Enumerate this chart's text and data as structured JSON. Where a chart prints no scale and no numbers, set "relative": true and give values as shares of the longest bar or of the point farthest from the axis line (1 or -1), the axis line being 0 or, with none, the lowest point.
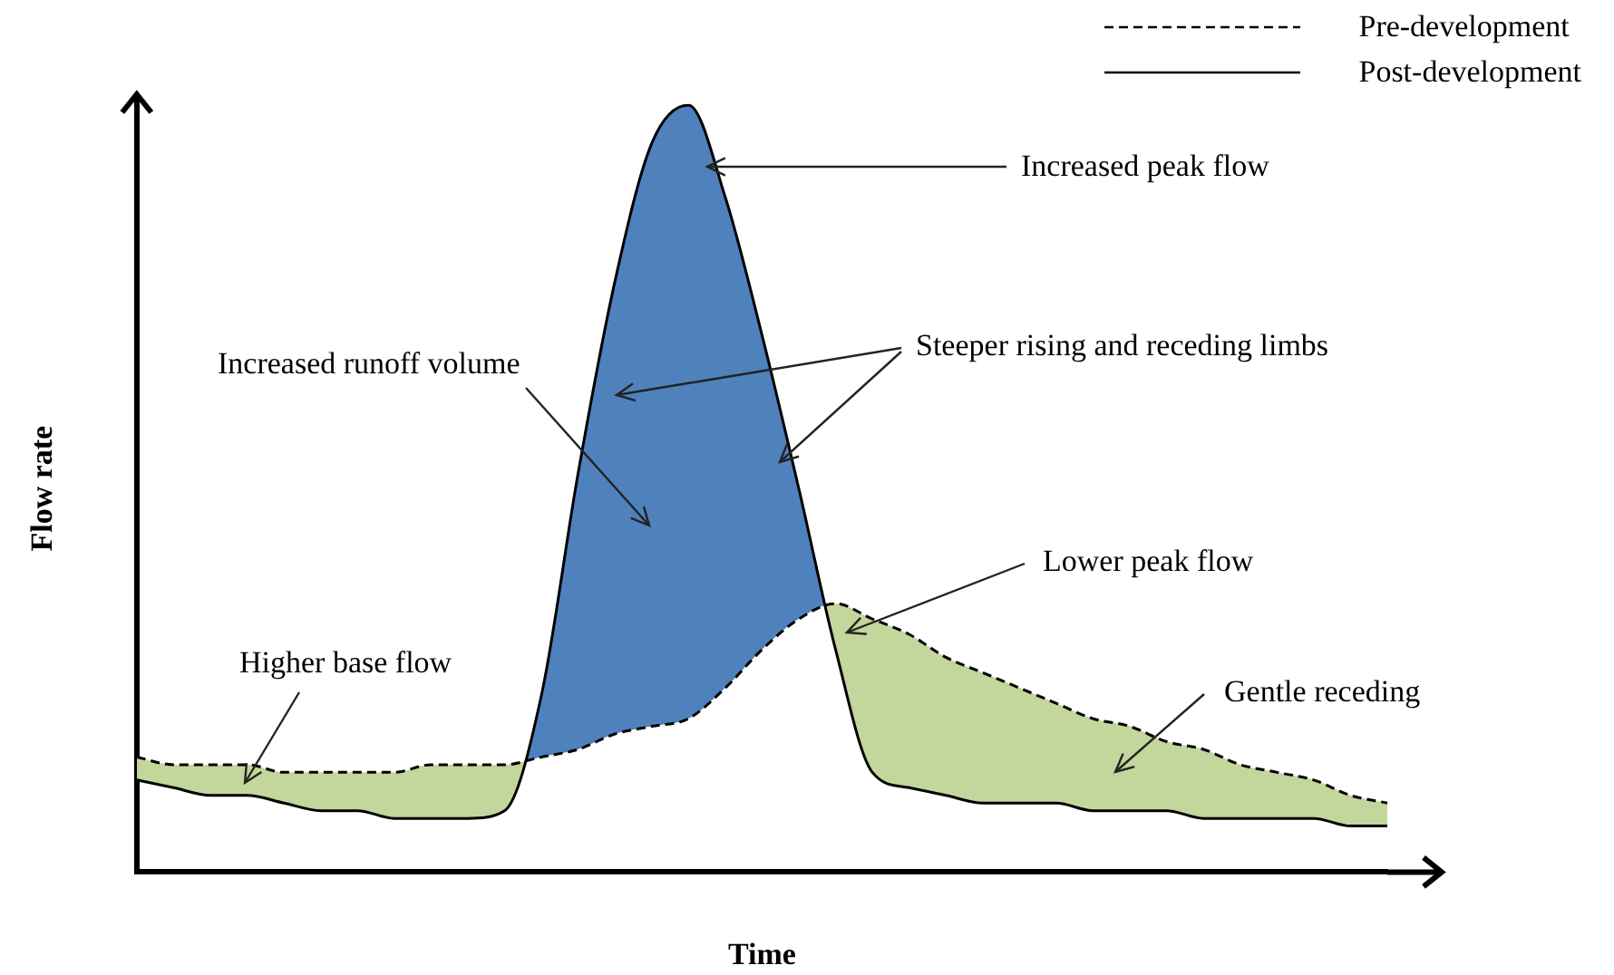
{
  "chart_data": {
    "type": "line",
    "relative": true,
    "xlabel": "Time",
    "ylabel": "Flow rate",
    "legend": "top right",
    "marker": "none",
    "categories": [
      null,
      null,
      null,
      null,
      null,
      null,
      null,
      null,
      null,
      null,
      null,
      null,
      null,
      null,
      null,
      null,
      null,
      null,
      null,
      null,
      null,
      null,
      null,
      null,
      null,
      null,
      null,
      null,
      null,
      null,
      null,
      null,
      null,
      null,
      null
    ],
    "series": [
      {
        "name": "Pre-development",
        "color": "#000000",
        "line_style": "dashed",
        "values": [
          0.15,
          0.14,
          0.14,
          0.14,
          0.13,
          0.13,
          0.13,
          0.13,
          0.14,
          0.14,
          0.14,
          0.15,
          0.16,
          0.18,
          0.19,
          0.2,
          0.24,
          0.29,
          0.33,
          0.35,
          0.33,
          0.31,
          0.28,
          0.26,
          0.24,
          0.22,
          0.2,
          0.19,
          0.17,
          0.16,
          0.14,
          0.13,
          0.12,
          0.1,
          0.09
        ]
      },
      {
        "name": "Post-development",
        "color": "#000000",
        "line_style": "solid",
        "values": [
          0.12,
          0.11,
          0.1,
          0.1,
          0.09,
          0.08,
          0.08,
          0.07,
          0.07,
          0.07,
          0.08,
          0.23,
          0.52,
          0.77,
          0.95,
          1.0,
          0.88,
          0.7,
          0.5,
          0.29,
          0.13,
          0.11,
          0.1,
          0.09,
          0.09,
          0.09,
          0.08,
          0.08,
          0.08,
          0.07,
          0.07,
          0.07,
          0.07,
          0.06,
          0.06
        ]
      }
    ],
    "annotations": [
      "Increased peak flow",
      "Increased runoff volume",
      "Steeper rising and receding limbs",
      "Lower peak flow",
      "Higher base flow",
      "Gentle receding"
    ]
  }
}
